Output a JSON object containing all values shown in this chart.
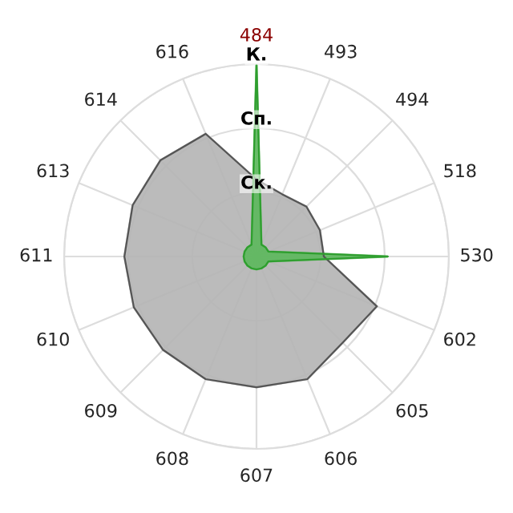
{
  "chart_data": {
    "type": "radar",
    "categories": [
      "484",
      "493",
      "494",
      "518",
      "530",
      "602",
      "605",
      "606",
      "607",
      "608",
      "609",
      "610",
      "611",
      "613",
      "614",
      "616"
    ],
    "ylim": [
      0,
      3
    ],
    "yticks": [
      {
        "value": 1,
        "label": "Ск."
      },
      {
        "value": 2,
        "label": "Сп."
      },
      {
        "value": 3,
        "label": "К."
      }
    ],
    "grid": true,
    "series": [
      {
        "color": "#b4b4b4",
        "values": [
          1.2,
          1.05,
          1.1,
          1.07,
          1.05,
          2.03,
          1.9,
          2.07,
          2.04,
          2.07,
          2.06,
          2.07,
          2.06,
          2.09,
          2.12,
          2.07
        ]
      },
      {
        "color": "#5cb85c",
        "values": [
          3,
          0.2,
          0.2,
          0.2,
          2.05,
          0.2,
          0.2,
          0.2,
          0.2,
          0.2,
          0.2,
          0.2,
          0.2,
          0.2,
          0.2,
          0.2
        ]
      }
    ]
  }
}
